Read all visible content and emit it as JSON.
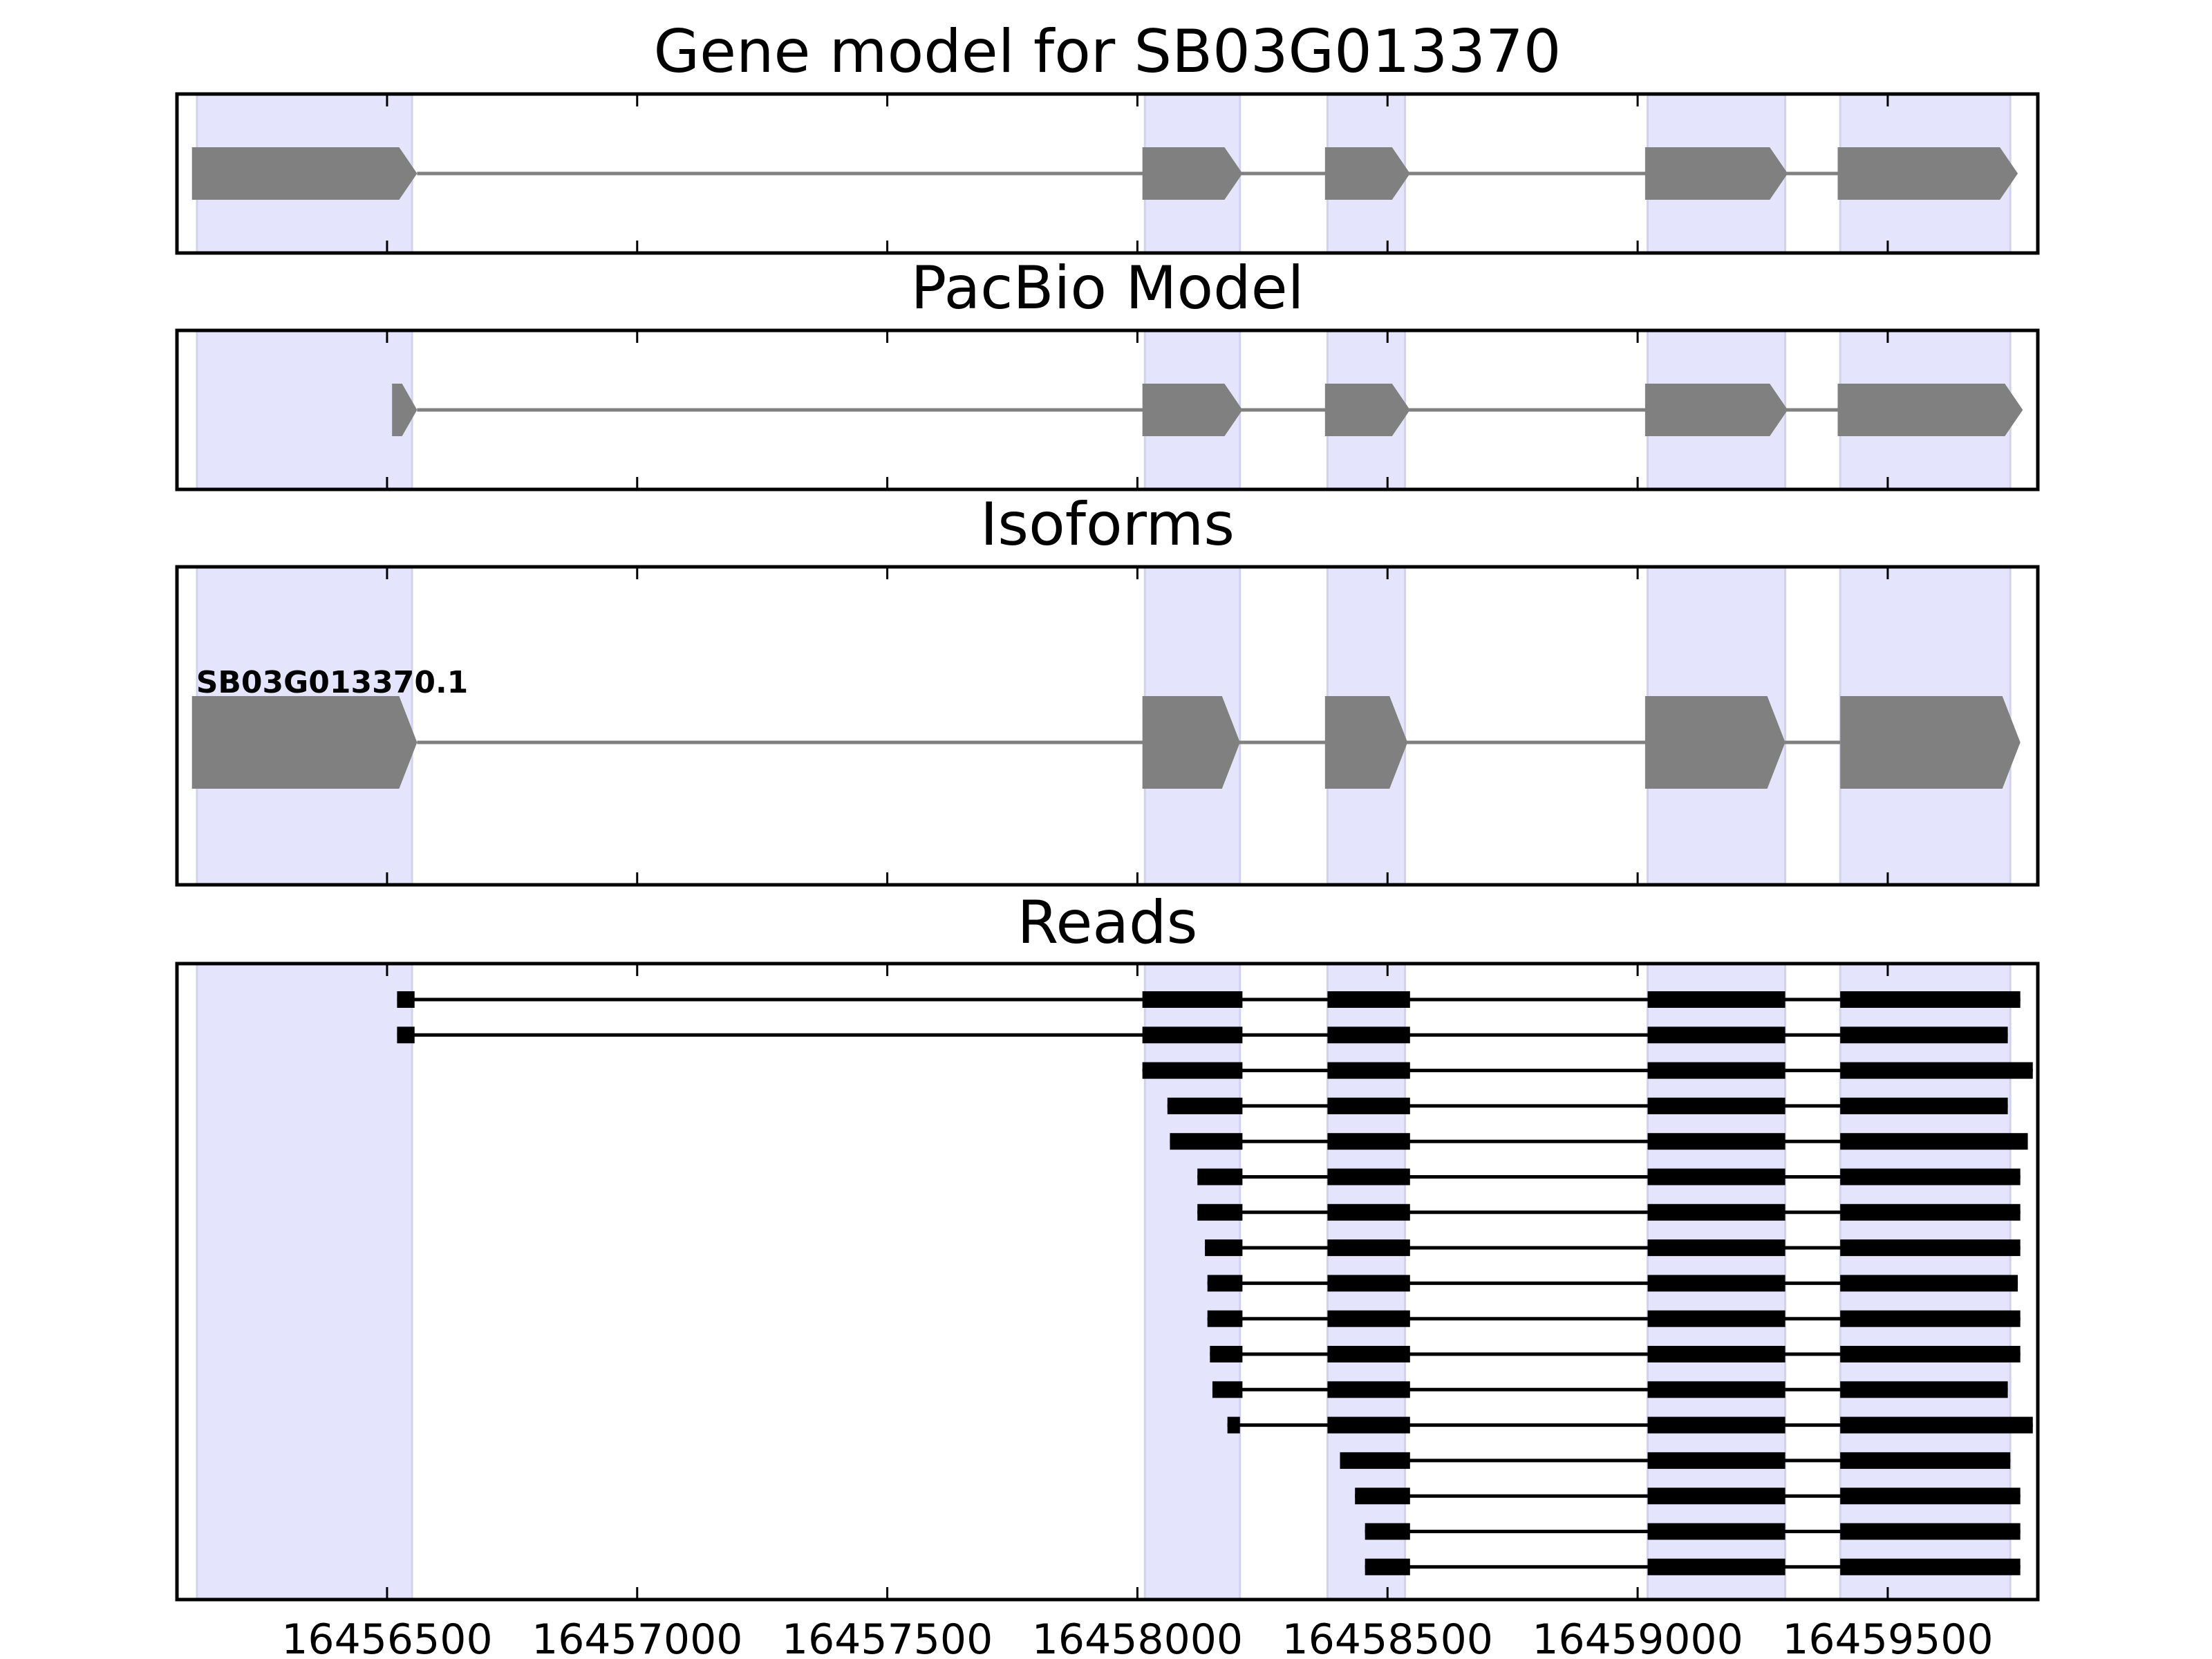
{
  "chart_data": {
    "type": "gene_model_tracks",
    "xlim": [
      16456080,
      16459800
    ],
    "x_ticks": [
      16456500,
      16457000,
      16457500,
      16458000,
      16458500,
      16459000,
      16459500
    ],
    "tick_labels": [
      "16456500",
      "16457000",
      "16457500",
      "16458000",
      "16458500",
      "16459000",
      "16459500"
    ],
    "strand": "+",
    "colors": {
      "feature": "#808080",
      "intron": "#808080",
      "read": "#000000",
      "highlight": "#e4e4fc",
      "highlight_edge": "#d2d2f0"
    },
    "highlight_regions": [
      [
        16456120,
        16456550
      ],
      [
        16458015,
        16458205
      ],
      [
        16458380,
        16458535
      ],
      [
        16459020,
        16459295
      ],
      [
        16459405,
        16459745
      ]
    ],
    "panels": [
      {
        "title": "Gene model for SB03G013370",
        "exons": [
          [
            16456110,
            16456560
          ],
          [
            16458010,
            16458210
          ],
          [
            16458375,
            16458545
          ],
          [
            16459015,
            16459300
          ],
          [
            16459400,
            16459760
          ]
        ]
      },
      {
        "title": "PacBio Model",
        "exons": [
          [
            16456510,
            16456560
          ],
          [
            16458010,
            16458210
          ],
          [
            16458375,
            16458545
          ],
          [
            16459015,
            16459300
          ],
          [
            16459400,
            16459770
          ]
        ]
      },
      {
        "title": "Isoforms",
        "isoforms": [
          {
            "label": "SB03G013370.1",
            "exons": [
              [
                16456110,
                16456560
              ],
              [
                16458010,
                16458205
              ],
              [
                16458375,
                16458540
              ],
              [
                16459015,
                16459295
              ],
              [
                16459405,
                16459765
              ]
            ]
          }
        ]
      },
      {
        "title": "Reads",
        "reads": [
          [
            [
              16456520,
              16456555
            ],
            [
              16458010,
              16458210
            ],
            [
              16458380,
              16458545
            ],
            [
              16459020,
              16459295
            ],
            [
              16459405,
              16459765
            ]
          ],
          [
            [
              16456520,
              16456555
            ],
            [
              16458010,
              16458210
            ],
            [
              16458380,
              16458545
            ],
            [
              16459020,
              16459295
            ],
            [
              16459405,
              16459740
            ]
          ],
          [
            [
              16458010,
              16458210
            ],
            [
              16458380,
              16458545
            ],
            [
              16459020,
              16459295
            ],
            [
              16459405,
              16459790
            ]
          ],
          [
            [
              16458060,
              16458210
            ],
            [
              16458380,
              16458545
            ],
            [
              16459020,
              16459295
            ],
            [
              16459405,
              16459740
            ]
          ],
          [
            [
              16458065,
              16458210
            ],
            [
              16458380,
              16458545
            ],
            [
              16459020,
              16459295
            ],
            [
              16459405,
              16459780
            ]
          ],
          [
            [
              16458120,
              16458210
            ],
            [
              16458380,
              16458545
            ],
            [
              16459020,
              16459295
            ],
            [
              16459405,
              16459765
            ]
          ],
          [
            [
              16458120,
              16458210
            ],
            [
              16458380,
              16458545
            ],
            [
              16459020,
              16459295
            ],
            [
              16459405,
              16459765
            ]
          ],
          [
            [
              16458135,
              16458210
            ],
            [
              16458380,
              16458545
            ],
            [
              16459020,
              16459295
            ],
            [
              16459405,
              16459765
            ]
          ],
          [
            [
              16458140,
              16458210
            ],
            [
              16458380,
              16458545
            ],
            [
              16459020,
              16459295
            ],
            [
              16459405,
              16459760
            ]
          ],
          [
            [
              16458140,
              16458210
            ],
            [
              16458380,
              16458545
            ],
            [
              16459020,
              16459295
            ],
            [
              16459405,
              16459765
            ]
          ],
          [
            [
              16458145,
              16458210
            ],
            [
              16458380,
              16458545
            ],
            [
              16459020,
              16459295
            ],
            [
              16459405,
              16459765
            ]
          ],
          [
            [
              16458150,
              16458210
            ],
            [
              16458380,
              16458545
            ],
            [
              16459020,
              16459295
            ],
            [
              16459405,
              16459740
            ]
          ],
          [
            [
              16458180,
              16458205
            ],
            [
              16458380,
              16458545
            ],
            [
              16459020,
              16459295
            ],
            [
              16459405,
              16459790
            ]
          ],
          [
            [
              16458405,
              16458545
            ],
            [
              16459020,
              16459295
            ],
            [
              16459405,
              16459745
            ]
          ],
          [
            [
              16458435,
              16458545
            ],
            [
              16459020,
              16459295
            ],
            [
              16459405,
              16459765
            ]
          ],
          [
            [
              16458455,
              16458545
            ],
            [
              16459020,
              16459295
            ],
            [
              16459405,
              16459765
            ]
          ],
          [
            [
              16458455,
              16458545
            ],
            [
              16459020,
              16459295
            ],
            [
              16459405,
              16459765
            ]
          ]
        ]
      }
    ]
  }
}
